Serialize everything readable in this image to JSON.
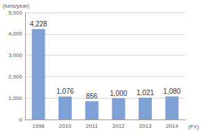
{
  "chart_data": {
    "type": "bar",
    "ylabel": "(tons/year)",
    "xlabel": "(FY)",
    "categories": [
      "1996",
      "2010",
      "2011",
      "2012",
      "2013",
      "2014"
    ],
    "values": [
      4228,
      1076,
      856,
      1000,
      1021,
      1080
    ],
    "value_labels": [
      "4,228",
      "1,076",
      "856",
      "1,000",
      "1,021",
      "1,080"
    ],
    "data_labels": true,
    "color": "#7ea1d6",
    "ylim": [
      0,
      5000
    ],
    "yticks": [
      0,
      {
        "value": 1000,
        "label": "1,000"
      },
      {
        "value": 2000,
        "label": "2,000"
      },
      {
        "value": 3000,
        "label": "3,000"
      },
      {
        "value": 4000,
        "label": "4,000"
      },
      {
        "value": 5000,
        "label": "5,000"
      }
    ],
    "grid": true
  }
}
